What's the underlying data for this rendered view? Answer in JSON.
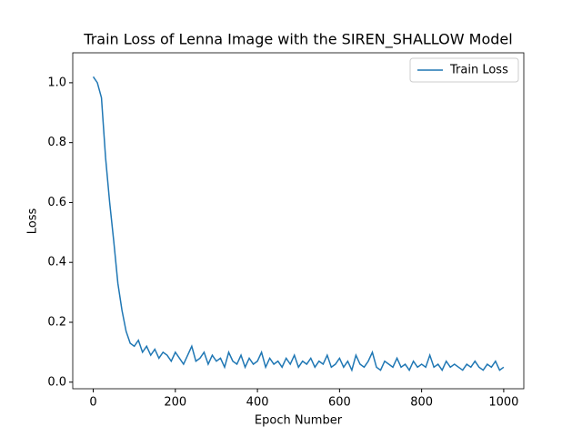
{
  "chart_data": {
    "type": "line",
    "title": "Train Loss of Lenna Image with the SIREN_SHALLOW Model",
    "x_label": "Epoch Number",
    "y_label": "Loss",
    "x": [
      0,
      10,
      20,
      30,
      40,
      50,
      60,
      70,
      80,
      90,
      100,
      110,
      120,
      130,
      140,
      150,
      160,
      170,
      180,
      190,
      200,
      210,
      220,
      230,
      240,
      250,
      260,
      270,
      280,
      290,
      300,
      310,
      320,
      330,
      340,
      350,
      360,
      370,
      380,
      390,
      400,
      410,
      420,
      430,
      440,
      450,
      460,
      470,
      480,
      490,
      500,
      510,
      520,
      530,
      540,
      550,
      560,
      570,
      580,
      590,
      600,
      610,
      620,
      630,
      640,
      650,
      660,
      670,
      680,
      690,
      700,
      710,
      720,
      730,
      740,
      750,
      760,
      770,
      780,
      790,
      800,
      810,
      820,
      830,
      840,
      850,
      860,
      870,
      880,
      890,
      900,
      910,
      920,
      930,
      940,
      950,
      960,
      970,
      980,
      990,
      1000
    ],
    "series": [
      {
        "name": "Train Loss",
        "color": "#1f77b4",
        "values": [
          1.02,
          1.0,
          0.95,
          0.75,
          0.6,
          0.47,
          0.33,
          0.24,
          0.17,
          0.13,
          0.12,
          0.14,
          0.1,
          0.12,
          0.09,
          0.11,
          0.08,
          0.1,
          0.09,
          0.07,
          0.1,
          0.08,
          0.06,
          0.09,
          0.12,
          0.07,
          0.08,
          0.1,
          0.06,
          0.09,
          0.07,
          0.08,
          0.05,
          0.1,
          0.07,
          0.06,
          0.09,
          0.05,
          0.08,
          0.06,
          0.07,
          0.1,
          0.05,
          0.08,
          0.06,
          0.07,
          0.05,
          0.08,
          0.06,
          0.09,
          0.05,
          0.07,
          0.06,
          0.08,
          0.05,
          0.07,
          0.06,
          0.09,
          0.05,
          0.06,
          0.08,
          0.05,
          0.07,
          0.04,
          0.09,
          0.06,
          0.05,
          0.07,
          0.1,
          0.05,
          0.04,
          0.07,
          0.06,
          0.05,
          0.08,
          0.05,
          0.06,
          0.04,
          0.07,
          0.05,
          0.06,
          0.05,
          0.09,
          0.05,
          0.06,
          0.04,
          0.07,
          0.05,
          0.06,
          0.05,
          0.04,
          0.06,
          0.05,
          0.07,
          0.05,
          0.04,
          0.06,
          0.05,
          0.07,
          0.04,
          0.05
        ]
      }
    ],
    "xlim": [
      -49.95,
      1048.95
    ],
    "ylim": [
      -0.022,
      1.1
    ],
    "xticks": [
      0,
      200,
      400,
      600,
      800,
      1000
    ],
    "yticks": [
      {
        "value": 0,
        "label": "0.0"
      },
      0.2,
      0.4,
      0.6,
      0.8,
      {
        "value": 1,
        "label": "1.0"
      }
    ],
    "legend": "upper right"
  }
}
